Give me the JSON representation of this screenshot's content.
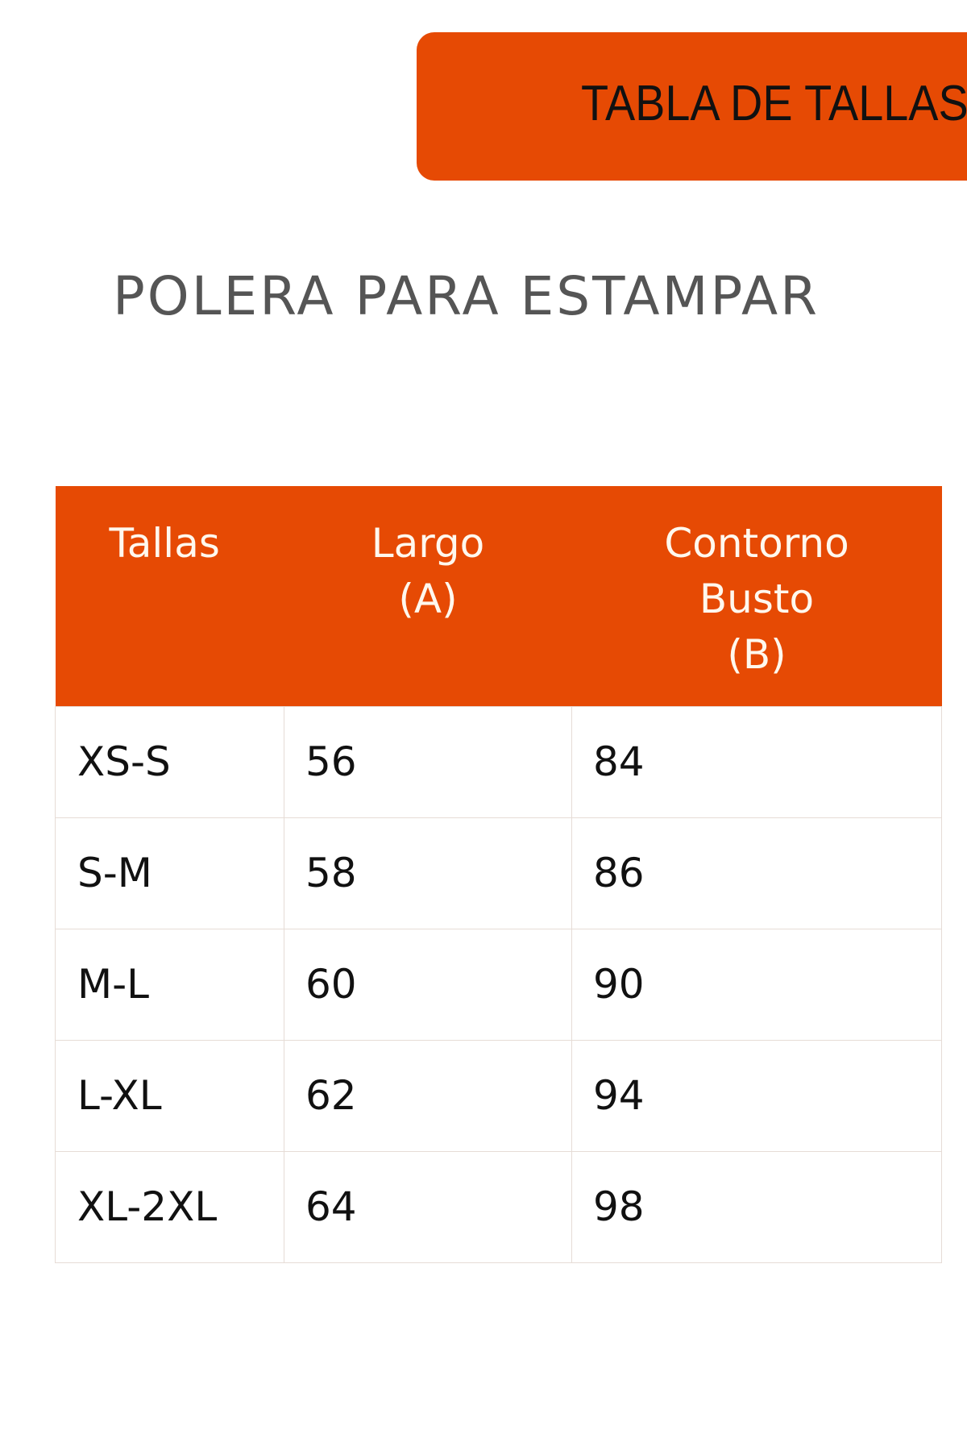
{
  "banner": {
    "label": "TABLA DE TALLAS"
  },
  "title": "POLERA PARA ESTAMPAR",
  "colors": {
    "accent": "#e64a04",
    "title": "#555555"
  },
  "table": {
    "headers": [
      {
        "lines": [
          "Tallas"
        ]
      },
      {
        "lines": [
          "Largo",
          "(A)"
        ]
      },
      {
        "lines": [
          "Contorno",
          "Busto",
          "(B)"
        ]
      }
    ],
    "rows": [
      [
        "XS-S",
        "56",
        "84"
      ],
      [
        "S-M",
        "58",
        "86"
      ],
      [
        "M-L",
        "60",
        "90"
      ],
      [
        "L-XL",
        "62",
        "94"
      ],
      [
        "XL-2XL",
        "64",
        "98"
      ]
    ]
  }
}
